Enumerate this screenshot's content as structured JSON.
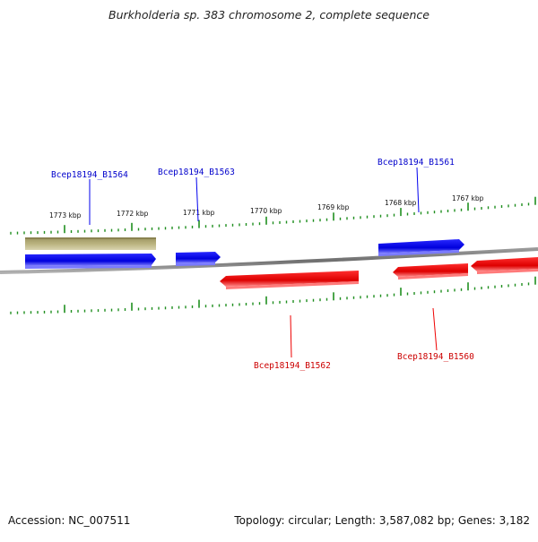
{
  "title": "Burkholderia sp. 383 chromosome 2, complete sequence",
  "footer": {
    "accession": "Accession: NC_007511",
    "topology": "Topology: circular; Length: 3,587,082 bp; Genes: 3,182"
  },
  "colors": {
    "forward_gene": "#0000ee",
    "reverse_gene": "#ee0000",
    "other_feature": "#b5ad7a",
    "tick": "#1f8f1f",
    "backbone": "#7a7a7a"
  },
  "ruler": {
    "unit": "kbp",
    "labels": [
      "1773 kbp",
      "1772 kbp",
      "1771 kbp",
      "1770 kbp",
      "1769 kbp",
      "1768 kbp",
      "1767 kbp"
    ]
  },
  "genes": [
    {
      "name": "Bcep18194_B1564",
      "strand": "forward"
    },
    {
      "name": "Bcep18194_B1563",
      "strand": "forward"
    },
    {
      "name": "Bcep18194_B1561",
      "strand": "forward"
    },
    {
      "name": "Bcep18194_B1562",
      "strand": "reverse"
    },
    {
      "name": "Bcep18194_B1560",
      "strand": "reverse"
    }
  ]
}
